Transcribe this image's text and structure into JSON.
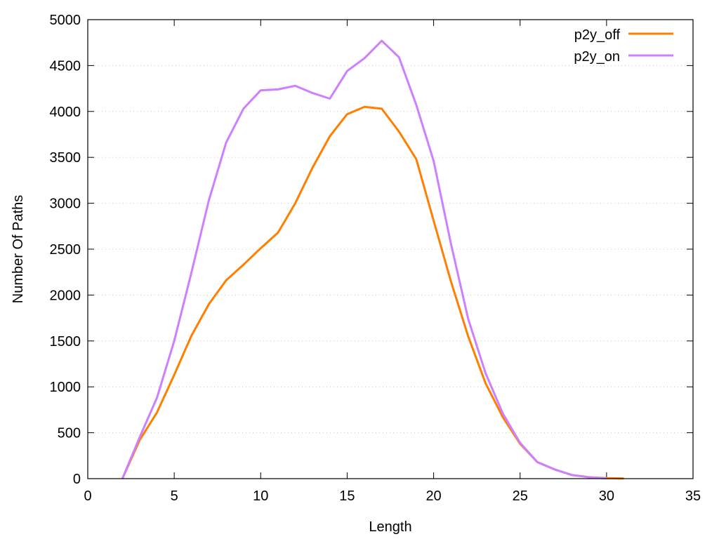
{
  "chart_data": {
    "type": "line",
    "title": "",
    "xlabel": "Length",
    "ylabel": "Number Of Paths",
    "xlim": [
      0,
      35
    ],
    "ylim": [
      0,
      5000
    ],
    "xticks": [
      0,
      5,
      10,
      15,
      20,
      25,
      30,
      35
    ],
    "yticks": [
      0,
      500,
      1000,
      1500,
      2000,
      2500,
      3000,
      3500,
      4000,
      4500,
      5000
    ],
    "grid": "horizontal dotted",
    "legend": "top-right",
    "series": [
      {
        "name": "p2y_off",
        "color": "#ff7f00",
        "x": [
          2,
          3,
          4,
          5,
          6,
          7,
          8,
          9,
          10,
          11,
          12,
          13,
          14,
          15,
          16,
          17,
          18,
          19,
          20,
          21,
          22,
          23,
          24,
          25,
          26,
          27,
          28,
          29,
          30,
          31
        ],
        "y": [
          0,
          420,
          720,
          1130,
          1560,
          1900,
          2160,
          2330,
          2510,
          2680,
          3000,
          3390,
          3730,
          3970,
          4050,
          4030,
          3780,
          3480,
          2810,
          2150,
          1550,
          1040,
          670,
          380,
          180,
          100,
          40,
          15,
          5,
          2
        ]
      },
      {
        "name": "p2y_on",
        "color": "#cc80ff",
        "x": [
          2,
          3,
          4,
          5,
          6,
          7,
          8,
          9,
          10,
          11,
          12,
          13,
          14,
          15,
          16,
          17,
          18,
          19,
          20,
          21,
          22,
          23,
          24,
          25,
          26,
          27,
          28,
          29,
          30
        ],
        "y": [
          0,
          450,
          880,
          1500,
          2250,
          3030,
          3660,
          4030,
          4230,
          4240,
          4280,
          4200,
          4140,
          4440,
          4580,
          4770,
          4590,
          4070,
          3460,
          2560,
          1740,
          1150,
          710,
          390,
          180,
          100,
          40,
          15,
          3
        ]
      }
    ]
  }
}
